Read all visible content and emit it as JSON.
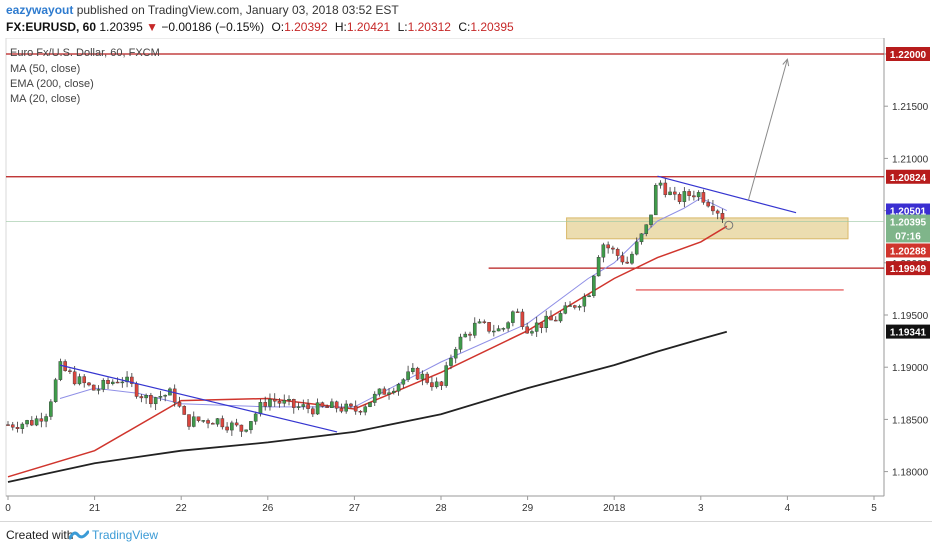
{
  "header": {
    "author": "eazywayout",
    "published_text": "published on TradingView.com, January 03, 2018 03:52 EST",
    "symbol": "FX:EURUSD, 60",
    "last": "1.20395",
    "change": "−0.00186 (−0.15%)",
    "open_label": "O:",
    "open": "1.20392",
    "high_label": "H:",
    "high": "1.20421",
    "low_label": "L:",
    "low": "1.20312",
    "close_label": "C:",
    "close": "1.20395"
  },
  "legend": {
    "title": "Euro Fx/U.S. Dollar, 60, FXCM",
    "indicators": [
      "MA (50, close)",
      "EMA (200, close)",
      "MA (20, close)"
    ]
  },
  "footer": {
    "created_with": "Created with",
    "brand": "TradingView"
  },
  "chart_data": {
    "type": "candlestick",
    "title": "Euro Fx/U.S. Dollar, 60, FXCM",
    "ylim": [
      1.1775,
      1.2225
    ],
    "y_ticks": [
      "1.18000",
      "1.18500",
      "1.19000",
      "1.19500",
      "1.20000",
      "1.20500",
      "1.21000",
      "1.21500",
      "1.22000"
    ],
    "x_ticks": [
      {
        "label": "0",
        "t": 0
      },
      {
        "label": "21",
        "t": 1
      },
      {
        "label": "22",
        "t": 2
      },
      {
        "label": "26",
        "t": 3
      },
      {
        "label": "27",
        "t": 4
      },
      {
        "label": "28",
        "t": 5
      },
      {
        "label": "29",
        "t": 6
      },
      {
        "label": "2018",
        "t": 7
      },
      {
        "label": "3",
        "t": 8
      },
      {
        "label": "4",
        "t": 9
      },
      {
        "label": "5",
        "t": 10
      }
    ],
    "colors": {
      "up": "#3f9a4a",
      "down": "#d9463e",
      "ma50": "#d0352d",
      "ema200": "#222222",
      "ma20": "#8f8fe6",
      "hline": "#b71c1c",
      "trend": "#3535d0",
      "zone": "#e9d7a2"
    },
    "price_path": [
      [
        0.0,
        1.1845
      ],
      [
        0.3,
        1.1848
      ],
      [
        0.45,
        1.1858
      ],
      [
        0.6,
        1.19
      ],
      [
        0.75,
        1.189
      ],
      [
        1.0,
        1.1878
      ],
      [
        1.3,
        1.189
      ],
      [
        1.6,
        1.187
      ],
      [
        1.9,
        1.1875
      ],
      [
        2.05,
        1.1848
      ],
      [
        2.4,
        1.185
      ],
      [
        2.7,
        1.184
      ],
      [
        3.0,
        1.187
      ],
      [
        3.3,
        1.1862
      ],
      [
        3.6,
        1.186
      ],
      [
        3.8,
        1.1862
      ],
      [
        4.0,
        1.1858
      ],
      [
        4.3,
        1.1875
      ],
      [
        4.7,
        1.1895
      ],
      [
        5.0,
        1.188
      ],
      [
        5.15,
        1.192
      ],
      [
        5.4,
        1.194
      ],
      [
        5.7,
        1.1935
      ],
      [
        5.85,
        1.1955
      ],
      [
        6.0,
        1.1938
      ],
      [
        6.3,
        1.1945
      ],
      [
        6.7,
        1.197
      ],
      [
        6.85,
        1.202
      ],
      [
        7.15,
        1.2
      ],
      [
        7.4,
        1.2038
      ],
      [
        7.5,
        1.208
      ],
      [
        7.7,
        1.206
      ],
      [
        7.95,
        1.2068
      ],
      [
        8.15,
        1.2055
      ],
      [
        8.3,
        1.204
      ]
    ],
    "series": [
      {
        "name": "MA (50, close)",
        "type": "line",
        "points": [
          [
            0,
            1.1795
          ],
          [
            1,
            1.182
          ],
          [
            2,
            1.1868
          ],
          [
            3,
            1.187
          ],
          [
            4,
            1.186
          ],
          [
            5,
            1.1895
          ],
          [
            6,
            1.1935
          ],
          [
            6.7,
            1.197
          ],
          [
            7,
            1.1985
          ],
          [
            7.5,
            1.2005
          ],
          [
            8,
            1.202
          ],
          [
            8.3,
            1.2035
          ]
        ]
      },
      {
        "name": "EMA (200, close)",
        "type": "line",
        "points": [
          [
            0,
            1.179
          ],
          [
            1,
            1.1808
          ],
          [
            2,
            1.182
          ],
          [
            3,
            1.1828
          ],
          [
            4,
            1.1838
          ],
          [
            5,
            1.1855
          ],
          [
            6,
            1.188
          ],
          [
            7,
            1.1902
          ],
          [
            7.5,
            1.1915
          ],
          [
            8,
            1.1927
          ],
          [
            8.3,
            1.1934
          ]
        ]
      },
      {
        "name": "MA (20, close)",
        "type": "line",
        "points": [
          [
            0.6,
            1.187
          ],
          [
            1,
            1.188
          ],
          [
            1.5,
            1.1875
          ],
          [
            2,
            1.1865
          ],
          [
            3,
            1.1862
          ],
          [
            4,
            1.1862
          ],
          [
            5,
            1.1905
          ],
          [
            6,
            1.1942
          ],
          [
            6.7,
            1.1985
          ],
          [
            7,
            1.2
          ],
          [
            7.5,
            1.204
          ],
          [
            7.8,
            1.2052
          ],
          [
            8,
            1.2062
          ],
          [
            8.3,
            1.205
          ]
        ]
      }
    ],
    "horizontal_lines": [
      1.22,
      1.20824,
      1.19949
    ],
    "short_line": {
      "price": 1.1974,
      "t_start": 7.25,
      "t_end": 9.65
    },
    "trendlines": [
      {
        "t_start": 0.6,
        "p_start": 1.1902,
        "t_end": 3.8,
        "p_end": 1.1838
      },
      {
        "t_start": 7.5,
        "p_start": 1.2083,
        "t_end": 9.1,
        "p_end": 1.2048
      }
    ],
    "zone": {
      "t_start": 6.45,
      "t_end": 9.7,
      "p_low": 1.2023,
      "p_high": 1.2043
    },
    "projection_arrow": {
      "t_start": 8.55,
      "p_start": 1.206,
      "t_end": 9.0,
      "p_end": 1.2195
    },
    "price_labels": [
      {
        "value": "1.22000",
        "bg": "#b71c1c",
        "fg": "#ffffff"
      },
      {
        "value": "1.20824",
        "bg": "#b71c1c",
        "fg": "#ffffff"
      },
      {
        "value": "1.20501",
        "bg": "#3a2ed1",
        "fg": "#ffffff"
      },
      {
        "value": "1.20395",
        "bg": "#7fb58a",
        "fg": "#ffffff"
      },
      {
        "value": "07:16",
        "bg": "#7fb58a",
        "fg": "#ffffff"
      },
      {
        "value": "1.20288",
        "bg": "#d0352d",
        "fg": "#ffffff"
      },
      {
        "value": "1.19949",
        "bg": "#b71c1c",
        "fg": "#ffffff"
      },
      {
        "value": "1.19341",
        "bg": "#111111",
        "fg": "#ffffff"
      }
    ]
  }
}
